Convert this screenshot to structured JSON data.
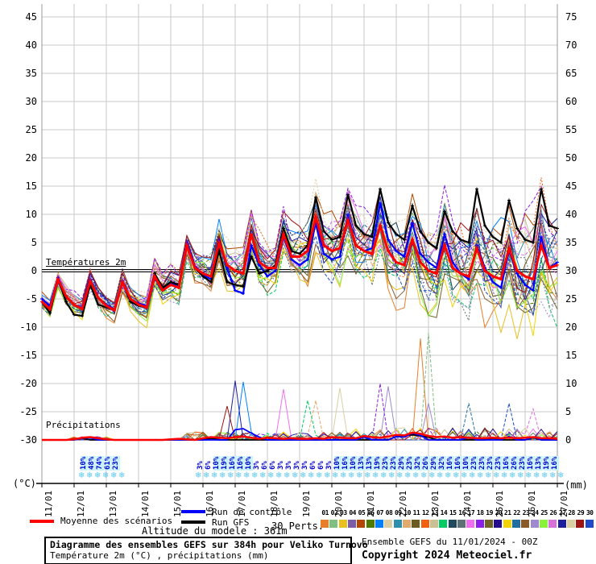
{
  "chart": {
    "title_box": {
      "line1": "Diagramme des ensembles GEFS sur 384h pour Veliko Turnovo",
      "line2": "Température 2m (°C) , précipitations (mm)"
    },
    "credits": {
      "line1": "Ensemble GEFS du 11/01/2024 - 00Z",
      "line2": "Copyright 2024 Meteociel.fr"
    },
    "legend": {
      "mean": "Moyenne des scénarios",
      "control": "Run de contrôle",
      "gfs": "Run GFS",
      "perts": "30 Perts.",
      "altitude": "Altitude du modele : 361m",
      "mean_color": "#ff0000",
      "control_color": "#0000ff",
      "gfs_color": "#000000"
    },
    "annotations": {
      "temp_label": "Températures 2m",
      "precip_label": "Précipitations"
    },
    "axis": {
      "left_unit": "(°C)",
      "right_unit": "(mm)",
      "left_ticks": [
        45,
        40,
        35,
        30,
        25,
        20,
        15,
        10,
        5,
        0,
        -5,
        -10,
        -15,
        -20,
        -25,
        -30
      ],
      "right_ticks": [
        75,
        70,
        65,
        60,
        55,
        50,
        45,
        40,
        35,
        30,
        25,
        20,
        15,
        10,
        5,
        0
      ],
      "x_labels": [
        "11/01",
        "12/01",
        "13/01",
        "14/01",
        "15/01",
        "16/01",
        "17/01",
        "18/01",
        "19/01",
        "20/01",
        "21/01",
        "22/01",
        "23/01",
        "24/01",
        "25/01",
        "26/01",
        "27/01"
      ]
    },
    "member_numbers": [
      "01",
      "02",
      "03",
      "04",
      "05",
      "06",
      "07",
      "08",
      "09",
      "10",
      "11",
      "12",
      "13",
      "14",
      "15",
      "16",
      "17",
      "18",
      "19",
      "20",
      "21",
      "22",
      "23",
      "24",
      "25",
      "26",
      "27",
      "28",
      "29",
      "30"
    ],
    "member_colors": [
      "#E87E2A",
      "#7FBF7F",
      "#E8C020",
      "#7B5EA7",
      "#B34700",
      "#4F7A00",
      "#0080FF",
      "#D9CFA3",
      "#2E8FAD",
      "#E0A96D",
      "#6B5B1E",
      "#F2600D",
      "#CBBF96",
      "#00CC66",
      "#1F4A5E",
      "#5E7175",
      "#F06FF0",
      "#8A1FE8",
      "#6E6428",
      "#260D8A",
      "#F2D500",
      "#1F6E9E",
      "#8A5A28",
      "#9E8ACF",
      "#8AF23D",
      "#D96FD9",
      "#1F1F9E",
      "#D9CFA3",
      "#9E1414",
      "#1F4AC9"
    ],
    "snow": {
      "flake_glyph": "❄",
      "groups": [
        {
          "start_day": 1.25,
          "step_day": 0.25,
          "values": [
            10,
            48,
            74,
            61,
            23
          ]
        },
        {
          "start_day": 4.875,
          "step_day": 0.25,
          "values": [
            3,
            6,
            10,
            19,
            16,
            16,
            10,
            3,
            6,
            6,
            3,
            3,
            3,
            3,
            6,
            6,
            3,
            10,
            16,
            10,
            13,
            13,
            19,
            23,
            23,
            29,
            23,
            32,
            26,
            29,
            32,
            16,
            16,
            10,
            23,
            23,
            23,
            23,
            16,
            26,
            23,
            16,
            13,
            19,
            16
          ]
        }
      ]
    }
  },
  "chart_data": {
    "type": "line",
    "title": "Diagramme des ensembles GEFS sur 384h pour Veliko Turnovo",
    "x_start": "11/01 00Z",
    "x_hours_step": 6,
    "x_days": [
      "11/01",
      "12/01",
      "13/01",
      "14/01",
      "15/01",
      "16/01",
      "17/01",
      "18/01",
      "19/01",
      "20/01",
      "21/01",
      "22/01",
      "23/01",
      "24/01",
      "25/01",
      "26/01",
      "27/01"
    ],
    "ylim_left_degC": [
      -30,
      45
    ],
    "ylim_right_mm": [
      0,
      75
    ],
    "grid": true,
    "zero_line_degC": 0,
    "temp_series": [
      {
        "name": "Moyenne des scénarios",
        "color": "#ff0000",
        "values": [
          -5.5,
          -6.8,
          -1.5,
          -4.5,
          -6,
          -6.8,
          -1.8,
          -4.8,
          -6.2,
          -7,
          -2,
          -5,
          -6,
          -6.5,
          -1,
          -3.5,
          -2.5,
          -3,
          4.5,
          0.5,
          -0.5,
          -1,
          5,
          1,
          0,
          -0.5,
          6.5,
          1.5,
          0.5,
          0.5,
          6.5,
          2.5,
          2.5,
          3.5,
          9.5,
          4.5,
          3.5,
          4,
          9,
          4.5,
          3.5,
          3,
          8,
          3.5,
          1.5,
          1,
          5.5,
          1.5,
          0,
          -0.5,
          4.5,
          0.5,
          -0.5,
          -1,
          4,
          0,
          -1,
          -1.5,
          4,
          0,
          -1,
          -1.5,
          4.5,
          0.5,
          1
        ]
      },
      {
        "name": "Run de contrôle",
        "color": "#0000ff",
        "values": [
          -5,
          -6.2,
          -1.2,
          -4.6,
          -6,
          -6.6,
          -1.6,
          -4.9,
          -6,
          -6.8,
          -1.8,
          -5,
          -5.8,
          -6.2,
          -1.2,
          -3.2,
          -2.2,
          -2.8,
          5,
          0.8,
          -0.8,
          -1.5,
          5.5,
          0.5,
          -3.5,
          -4,
          4.5,
          1,
          -1,
          0,
          6,
          2,
          1,
          2,
          8.5,
          3,
          2,
          2.5,
          10,
          4.5,
          3.5,
          4,
          12,
          5.5,
          3.5,
          2.5,
          8.5,
          3,
          1.5,
          0.5,
          6.5,
          1.5,
          -0.5,
          -1.5,
          4.5,
          0.5,
          -2,
          -3,
          3.5,
          -0.5,
          -2.5,
          -3.5,
          6,
          0.5,
          1.5
        ]
      },
      {
        "name": "Run GFS",
        "color": "#000000",
        "values": [
          -5.5,
          -7.5,
          -1.5,
          -5.5,
          -7.8,
          -8,
          -2.5,
          -6,
          -6.5,
          -7,
          -2,
          -5.5,
          -6.2,
          -6.5,
          -0.5,
          -3,
          -2,
          -2.5,
          4.5,
          0.5,
          -1,
          -2,
          3.5,
          -2,
          -2.5,
          -2.8,
          2.5,
          -0.5,
          0,
          1,
          7.5,
          3.5,
          3,
          4.5,
          13,
          7,
          5.5,
          6,
          13.5,
          8,
          6.5,
          6,
          14.5,
          8.5,
          6.5,
          5.5,
          11.5,
          7,
          5,
          4,
          10.5,
          7,
          5.5,
          5,
          14.5,
          8,
          6,
          5,
          12.5,
          7.5,
          5.5,
          5,
          14.5,
          8,
          7.5
        ]
      }
    ],
    "precip_mean_mm": [
      0,
      0,
      0,
      0,
      0.1,
      0.4,
      0.5,
      0.3,
      0.1,
      0,
      0,
      0,
      0,
      0,
      0,
      0,
      0.1,
      0.2,
      0.1,
      0,
      0.3,
      0.5,
      0.4,
      0.3,
      0.5,
      0.6,
      0.4,
      0.2,
      0.4,
      0.3,
      0.2,
      0.3,
      0.2,
      0.2,
      0.3,
      0.2,
      0.5,
      0.4,
      0.3,
      0.3,
      0.7,
      0.5,
      0.4,
      0.6,
      0.9,
      0.8,
      1.3,
      1.1,
      0.7,
      0.5,
      0.6,
      0.4,
      0.5,
      0.4,
      0.3,
      0.3,
      0.4,
      0.3,
      0.4,
      0.3,
      0.4,
      0.5,
      0.3,
      0.3,
      0.2
    ],
    "precip_control_sparse": {
      "5": 0.3,
      "6": 0.4,
      "24": 1.8,
      "25": 2,
      "26": 1.2,
      "27": 0.5,
      "40": 0.5,
      "44": 0.6,
      "45": 0.5,
      "46": 1.2,
      "47": 0.8,
      "53": 0.5,
      "58": 0.6,
      "61": 0.5
    },
    "precip_gfs_sparse": {
      "5": 0.3,
      "21": 0.3,
      "44": 0.6,
      "45": 0.8,
      "46": 0.9,
      "47": 0.7,
      "48": 0.5,
      "56": 0.3,
      "61": 0.4
    },
    "precip_spikes": [
      {
        "k": 23,
        "member": 28,
        "mm": 6
      },
      {
        "k": 24,
        "member": 26,
        "mm": 10.5
      },
      {
        "k": 25,
        "member": 6,
        "mm": 10.3
      },
      {
        "k": 30,
        "member": 16,
        "mm": 9
      },
      {
        "k": 33,
        "member": 13,
        "mm": 7
      },
      {
        "k": 34,
        "member": 9,
        "mm": 7
      },
      {
        "k": 37,
        "member": 7,
        "mm": 9.2
      },
      {
        "k": 42,
        "member": 17,
        "mm": 10
      },
      {
        "k": 43,
        "member": 23,
        "mm": 9.5
      },
      {
        "k": 47,
        "member": 0,
        "mm": 18
      },
      {
        "k": 48,
        "member": 1,
        "mm": 19
      },
      {
        "k": 48,
        "member": 23,
        "mm": 6.5
      },
      {
        "k": 53,
        "member": 21,
        "mm": 6.5
      },
      {
        "k": 58,
        "member": 29,
        "mm": 6.5
      },
      {
        "k": 61,
        "member": 25,
        "mm": 5.5
      }
    ],
    "ensemble": {
      "count": 30,
      "spread_start_degC": 1.3,
      "spread_end_degC": 9.5
    }
  }
}
